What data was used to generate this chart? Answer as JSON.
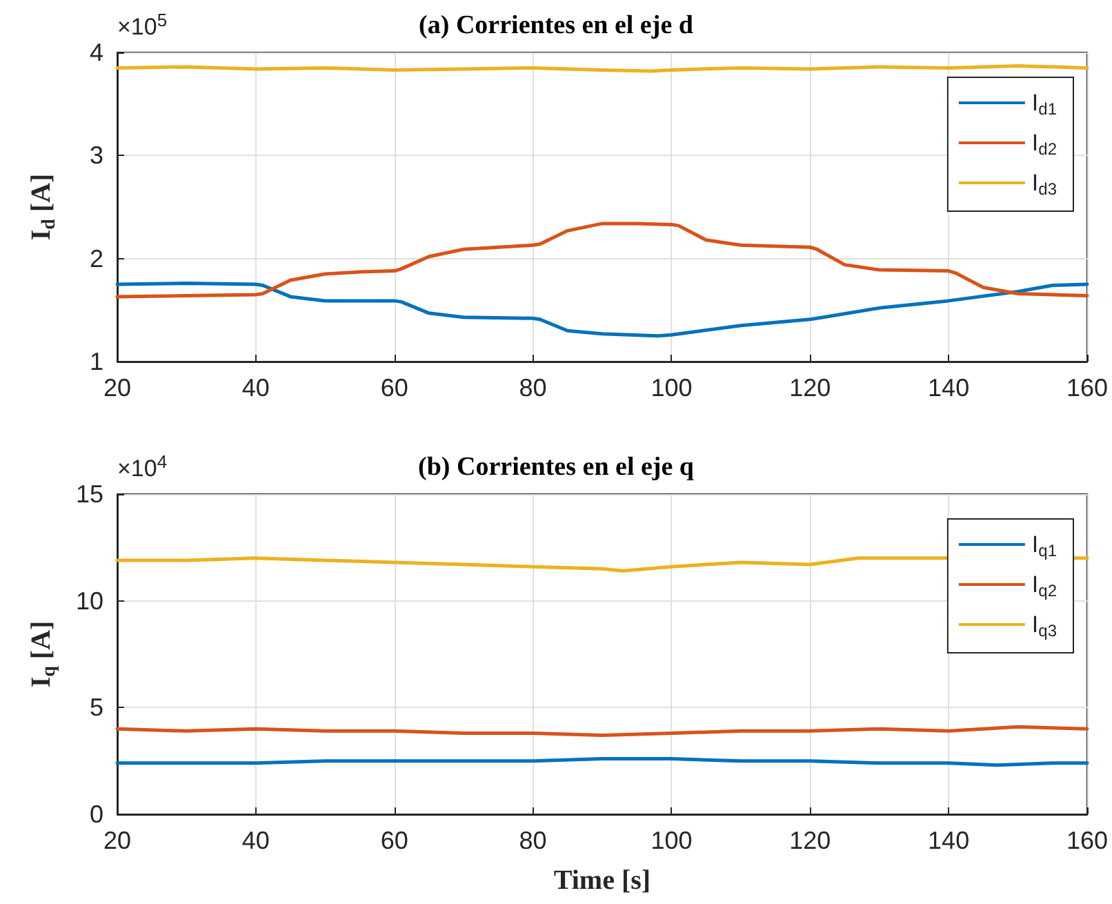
{
  "chart_data": [
    {
      "type": "line",
      "title": "(a) Corrientes en el eje d",
      "ylabel": "I$_{d}$ [A]",
      "annotations": [
        "×10$^{5}$"
      ],
      "xlim": [
        20,
        160
      ],
      "xticks": [
        20,
        40,
        60,
        80,
        100,
        120,
        140,
        160
      ],
      "ylim": [
        1,
        4
      ],
      "yticks": [
        1,
        2,
        3,
        4
      ],
      "grid": true,
      "legend": "top right",
      "marker": "none",
      "line_style": "solid",
      "series": [
        {
          "name": "I$_{d1}$",
          "color": "#0072bd",
          "x": [
            20,
            30,
            40,
            41,
            45,
            50,
            60,
            61,
            65,
            70,
            80,
            81,
            85,
            90,
            98,
            100,
            110,
            120,
            121,
            130,
            140,
            150,
            155,
            160
          ],
          "values": [
            1.75,
            1.76,
            1.75,
            1.74,
            1.63,
            1.59,
            1.59,
            1.58,
            1.47,
            1.43,
            1.42,
            1.41,
            1.3,
            1.27,
            1.25,
            1.26,
            1.35,
            1.41,
            1.42,
            1.52,
            1.59,
            1.68,
            1.74,
            1.75
          ]
        },
        {
          "name": "I$_{d2}$",
          "color": "#d95319",
          "x": [
            20,
            40,
            41,
            45,
            50,
            55,
            60,
            61,
            65,
            70,
            80,
            81,
            85,
            90,
            95,
            100,
            101,
            105,
            110,
            120,
            121,
            125,
            130,
            140,
            141,
            145,
            150,
            160
          ],
          "values": [
            1.63,
            1.65,
            1.66,
            1.79,
            1.85,
            1.87,
            1.88,
            1.9,
            2.02,
            2.09,
            2.13,
            2.14,
            2.27,
            2.34,
            2.34,
            2.33,
            2.32,
            2.18,
            2.13,
            2.11,
            2.09,
            1.94,
            1.89,
            1.88,
            1.86,
            1.72,
            1.66,
            1.64
          ]
        },
        {
          "name": "I$_{d3}$",
          "color": "#edb120",
          "x": [
            20,
            30,
            40,
            50,
            60,
            70,
            80,
            90,
            97,
            100,
            110,
            120,
            130,
            140,
            150,
            160
          ],
          "values": [
            3.85,
            3.86,
            3.84,
            3.85,
            3.83,
            3.84,
            3.85,
            3.83,
            3.82,
            3.83,
            3.85,
            3.84,
            3.86,
            3.85,
            3.87,
            3.85
          ]
        }
      ]
    },
    {
      "type": "line",
      "title": "(b) Corrientes en el eje q",
      "xlabel": "Time [s]",
      "ylabel": "I$_{q}$ [A]",
      "annotations": [
        "×10$^{4}$"
      ],
      "xlim": [
        20,
        160
      ],
      "xticks": [
        20,
        40,
        60,
        80,
        100,
        120,
        140,
        160
      ],
      "ylim": [
        0,
        15
      ],
      "yticks": [
        0,
        5,
        10,
        15
      ],
      "grid": true,
      "legend": "top right",
      "marker": "none",
      "line_style": "solid",
      "series": [
        {
          "name": "I$_{q1}$",
          "color": "#0072bd",
          "x": [
            20,
            30,
            40,
            50,
            60,
            70,
            80,
            90,
            100,
            110,
            120,
            130,
            140,
            147,
            155,
            160
          ],
          "values": [
            2.4,
            2.4,
            2.4,
            2.5,
            2.5,
            2.5,
            2.5,
            2.6,
            2.6,
            2.5,
            2.5,
            2.4,
            2.4,
            2.3,
            2.4,
            2.4
          ]
        },
        {
          "name": "I$_{q2}$",
          "color": "#d95319",
          "x": [
            20,
            30,
            40,
            50,
            60,
            70,
            80,
            90,
            100,
            110,
            120,
            130,
            140,
            150,
            160
          ],
          "values": [
            4.0,
            3.9,
            4.0,
            3.9,
            3.9,
            3.8,
            3.8,
            3.7,
            3.8,
            3.9,
            3.9,
            4.0,
            3.9,
            4.1,
            4.0
          ]
        },
        {
          "name": "I$_{q3}$",
          "color": "#edb120",
          "x": [
            20,
            30,
            40,
            50,
            60,
            70,
            80,
            90,
            93,
            100,
            110,
            120,
            127,
            160
          ],
          "values": [
            11.9,
            11.9,
            12.0,
            11.9,
            11.8,
            11.7,
            11.6,
            11.5,
            11.4,
            11.6,
            11.8,
            11.7,
            12.0,
            12.0
          ]
        }
      ]
    }
  ]
}
